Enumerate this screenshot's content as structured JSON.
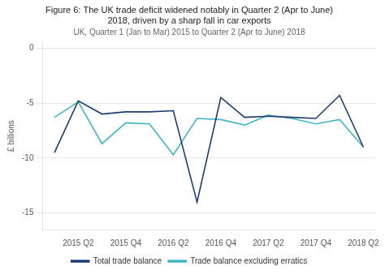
{
  "chart_data": {
    "type": "line",
    "title": "Figure 6: The UK trade deficit widened notably in Quarter 2 (Apr to June)\n2018, driven by a sharp fall in car exports",
    "subtitle": "UK, Quarter 1 (Jan to Mar) 2015 to Quarter 2 (Apr to June) 2018",
    "ylabel": "£ billions",
    "categories": [
      null,
      "2015 Q2",
      null,
      "2015 Q4",
      null,
      "2016 Q2",
      null,
      "2016 Q4",
      null,
      "2017 Q2",
      null,
      "2017 Q4",
      null,
      "2018 Q2"
    ],
    "series": [
      {
        "name": "Total trade balance",
        "color": "#1f3c6e",
        "values": [
          -9.5,
          -4.8,
          -6.0,
          -5.8,
          -5.8,
          -5.7,
          -14.0,
          -4.5,
          -6.3,
          -6.2,
          -6.3,
          -6.4,
          -4.3,
          -9.0
        ]
      },
      {
        "name": "Trade balance excluding erratics",
        "color": "#41b6c4",
        "values": [
          -6.3,
          -4.9,
          -8.7,
          -6.8,
          -6.9,
          -9.7,
          -6.4,
          -6.5,
          -7.0,
          -6.1,
          -6.4,
          -6.9,
          -6.5,
          -9.0
        ]
      }
    ],
    "ylim": [
      -16.5,
      0.5
    ],
    "yticks": [
      0,
      -5,
      -10,
      -15
    ],
    "grid": true,
    "legend": "bottom"
  }
}
